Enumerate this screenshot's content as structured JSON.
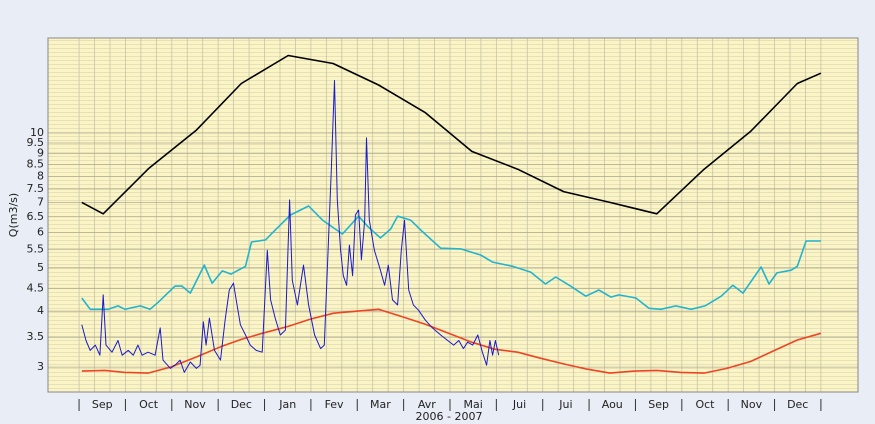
{
  "chart_data": {
    "type": "line",
    "ylabel": "Q(m3/s)",
    "xlabel": "2006 - 2007",
    "categories": [
      "Sep",
      "Oct",
      "Nov",
      "Dec",
      "Jan",
      "Fev",
      "Mar",
      "Avr",
      "Mai",
      "Jui",
      "Jui",
      "Aou",
      "Sep",
      "Oct",
      "Nov",
      "Dec"
    ],
    "xlim": [
      -0.67,
      16.8
    ],
    "ylim": [
      2.64,
      16.3
    ],
    "log_y": true,
    "grid": true,
    "yticks": [
      3,
      3.5,
      4,
      4.5,
      5,
      5.5,
      6,
      6.5,
      7,
      7.5,
      8,
      8.5,
      9,
      9.5,
      10
    ],
    "series": [
      {
        "color": "#000000",
        "x": [
          0.06,
          0.52,
          1.51,
          2.53,
          3.5,
          4.51,
          5.48,
          6.46,
          7.47,
          8.47,
          9.46,
          10.45,
          11.45,
          12.46,
          13.48,
          14.49,
          15.49,
          16.0
        ],
        "values": [
          7.0,
          6.6,
          8.35,
          10.15,
          12.9,
          14.9,
          14.3,
          12.8,
          11.1,
          9.1,
          8.3,
          7.4,
          7.0,
          6.6,
          8.3,
          10.1,
          12.9,
          13.6
        ]
      },
      {
        "color": "#22b4cc",
        "x": [
          0.06,
          0.24,
          0.63,
          0.84,
          0.99,
          1.32,
          1.53,
          1.71,
          2.07,
          2.22,
          2.4,
          2.7,
          2.87,
          3.09,
          3.28,
          3.59,
          3.72,
          4.02,
          4.23,
          4.56,
          4.95,
          5.25,
          5.68,
          6.03,
          6.24,
          6.5,
          6.72,
          6.87,
          7.15,
          7.37,
          7.8,
          8.23,
          8.66,
          8.92,
          9.35,
          9.74,
          10.06,
          10.28,
          10.6,
          10.93,
          11.21,
          11.47,
          11.64,
          12.01,
          12.29,
          12.55,
          12.87,
          13.2,
          13.5,
          13.85,
          14.1,
          14.32,
          14.71,
          14.88,
          15.05,
          15.36,
          15.49,
          15.68,
          16.0
        ],
        "values": [
          4.28,
          4.04,
          4.04,
          4.11,
          4.04,
          4.11,
          4.04,
          4.19,
          4.55,
          4.55,
          4.39,
          5.07,
          4.62,
          4.92,
          4.84,
          5.04,
          5.71,
          5.77,
          6.07,
          6.56,
          6.87,
          6.39,
          5.95,
          6.52,
          6.16,
          5.83,
          6.1,
          6.52,
          6.39,
          6.07,
          5.53,
          5.51,
          5.34,
          5.15,
          5.04,
          4.89,
          4.6,
          4.77,
          4.55,
          4.32,
          4.46,
          4.3,
          4.35,
          4.28,
          4.06,
          4.04,
          4.11,
          4.04,
          4.11,
          4.32,
          4.57,
          4.39,
          5.02,
          4.6,
          4.87,
          4.94,
          5.04,
          5.74,
          5.74
        ]
      },
      {
        "color": "#ee4422",
        "x": [
          0.06,
          0.56,
          0.99,
          1.49,
          1.97,
          2.53,
          3.05,
          3.5,
          3.95,
          4.51,
          4.99,
          5.49,
          5.98,
          6.46,
          6.93,
          7.47,
          7.97,
          8.47,
          8.96,
          9.46,
          9.96,
          10.45,
          10.95,
          11.45,
          11.97,
          12.46,
          12.98,
          13.48,
          13.97,
          14.49,
          14.97,
          15.49,
          16.0
        ],
        "values": [
          2.94,
          2.95,
          2.92,
          2.91,
          3.0,
          3.16,
          3.33,
          3.46,
          3.57,
          3.7,
          3.84,
          3.96,
          4.0,
          4.04,
          3.9,
          3.74,
          3.57,
          3.41,
          3.29,
          3.24,
          3.14,
          3.05,
          2.97,
          2.91,
          2.94,
          2.95,
          2.92,
          2.91,
          2.98,
          3.09,
          3.26,
          3.45,
          3.57
        ]
      },
      {
        "color": "#1a1acc",
        "x": [
          0.06,
          0.15,
          0.24,
          0.35,
          0.45,
          0.52,
          0.58,
          0.71,
          0.84,
          0.93,
          1.06,
          1.17,
          1.27,
          1.36,
          1.49,
          1.64,
          1.75,
          1.81,
          1.97,
          2.07,
          2.18,
          2.27,
          2.4,
          2.53,
          2.61,
          2.68,
          2.74,
          2.81,
          2.92,
          3.05,
          3.15,
          3.24,
          3.33,
          3.39,
          3.48,
          3.59,
          3.69,
          3.82,
          3.95,
          4.06,
          4.13,
          4.23,
          4.34,
          4.45,
          4.54,
          4.6,
          4.71,
          4.84,
          4.95,
          5.08,
          5.21,
          5.29,
          5.38,
          5.44,
          5.51,
          5.57,
          5.64,
          5.7,
          5.77,
          5.83,
          5.9,
          5.96,
          6.03,
          6.09,
          6.16,
          6.2,
          6.26,
          6.37,
          6.5,
          6.59,
          6.67,
          6.76,
          6.87,
          6.95,
          7.02,
          7.11,
          7.21,
          7.32,
          7.47,
          7.62,
          7.8,
          7.95,
          8.08,
          8.19,
          8.29,
          8.38,
          8.49,
          8.6,
          8.7,
          8.79,
          8.86,
          8.92,
          8.98,
          9.05
        ],
        "values": [
          3.73,
          3.44,
          3.27,
          3.36,
          3.19,
          4.35,
          3.36,
          3.24,
          3.44,
          3.19,
          3.27,
          3.19,
          3.36,
          3.19,
          3.24,
          3.19,
          3.67,
          3.11,
          2.98,
          3.03,
          3.11,
          2.92,
          3.08,
          2.98,
          3.03,
          3.79,
          3.36,
          3.86,
          3.27,
          3.11,
          3.82,
          4.46,
          4.62,
          4.24,
          3.73,
          3.54,
          3.36,
          3.27,
          3.24,
          5.47,
          4.24,
          3.86,
          3.54,
          3.63,
          7.09,
          4.69,
          4.13,
          5.07,
          4.13,
          3.54,
          3.3,
          3.36,
          5.77,
          8.27,
          13.1,
          7.09,
          5.47,
          4.8,
          4.57,
          5.62,
          4.8,
          6.56,
          6.73,
          5.21,
          6.39,
          9.75,
          6.39,
          5.47,
          4.94,
          4.57,
          5.07,
          4.24,
          4.13,
          5.47,
          6.39,
          4.46,
          4.13,
          4.02,
          3.82,
          3.67,
          3.54,
          3.44,
          3.36,
          3.44,
          3.3,
          3.41,
          3.36,
          3.54,
          3.24,
          3.03,
          3.44,
          3.19,
          3.44,
          3.19
        ]
      }
    ]
  }
}
